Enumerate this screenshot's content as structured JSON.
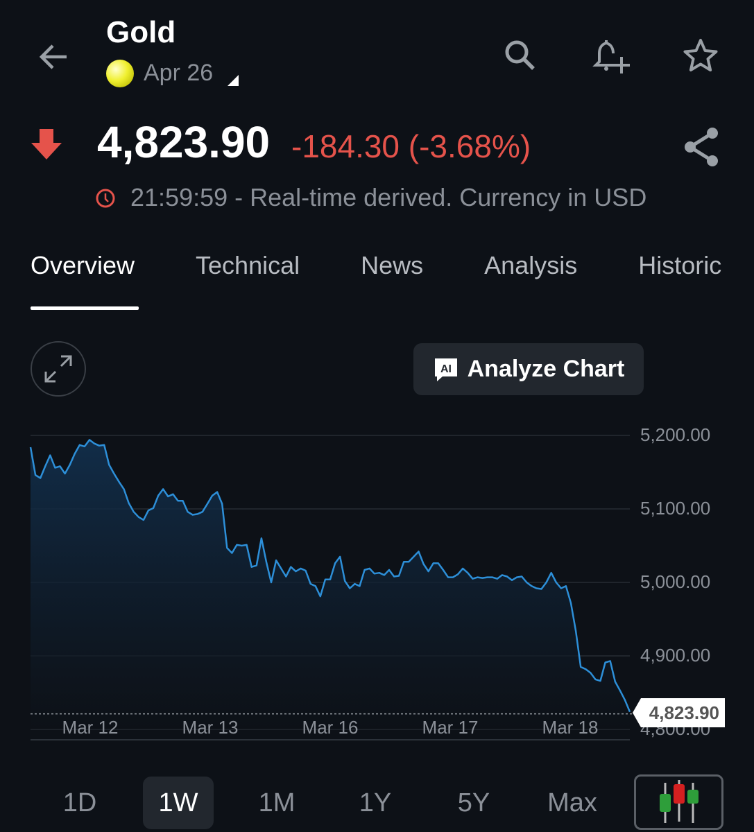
{
  "header": {
    "title": "Gold",
    "date": "Apr 26"
  },
  "quote": {
    "price": "4,823.90",
    "change": "-184.30 (-3.68%)",
    "direction": "down",
    "status": "21:59:59 - Real-time derived. Currency in USD"
  },
  "tabs": [
    {
      "label": "Overview",
      "active": true
    },
    {
      "label": "Technical"
    },
    {
      "label": "News"
    },
    {
      "label": "Analysis"
    },
    {
      "label": "Historic"
    }
  ],
  "analyze_label": "Analyze Chart",
  "ai_badge": "AI",
  "colors": {
    "line": "#2d8fd8",
    "down": "#e5534b",
    "background": "#0d1117"
  },
  "chart_data": {
    "type": "area",
    "x_tick_labels": [
      "Mar 12",
      "Mar 13",
      "Mar 16",
      "Mar 17",
      "Mar 18"
    ],
    "y_tick_labels": [
      "5,200.00",
      "5,100.00",
      "5,000.00",
      "4,900.00",
      "4,800.00"
    ],
    "ylim": [
      4780,
      5200
    ],
    "grid": true,
    "last_value_label": "4,823.90",
    "values": [
      5184,
      5146,
      5142,
      5158,
      5173,
      5156,
      5158,
      5148,
      5160,
      5175,
      5187,
      5185,
      5194,
      5189,
      5186,
      5187,
      5160,
      5148,
      5137,
      5127,
      5108,
      5096,
      5089,
      5085,
      5098,
      5101,
      5118,
      5127,
      5117,
      5120,
      5111,
      5111,
      5096,
      5092,
      5093,
      5096,
      5107,
      5118,
      5123,
      5107,
      5047,
      5040,
      5051,
      5050,
      5051,
      5021,
      5023,
      5060,
      5028,
      5000,
      5030,
      5019,
      5008,
      5021,
      5015,
      5019,
      5016,
      4998,
      4995,
      4981,
      5004,
      5004,
      5026,
      5035,
      5002,
      4992,
      4998,
      4995,
      5017,
      5019,
      5012,
      5013,
      5010,
      5017,
      5008,
      5009,
      5028,
      5028,
      5035,
      5042,
      5025,
      5015,
      5026,
      5026,
      5017,
      5007,
      5007,
      5011,
      5019,
      5013,
      5005,
      5007,
      5006,
      5007,
      5007,
      5005,
      5010,
      5008,
      5003,
      5007,
      5008,
      5000,
      4995,
      4992,
      4991,
      5000,
      5013,
      5000,
      4992,
      4995,
      4972,
      4934,
      4885,
      4882,
      4877,
      4868,
      4866,
      4891,
      4893,
      4865,
      4853,
      4840,
      4823.9
    ]
  },
  "ranges": [
    {
      "label": "1D"
    },
    {
      "label": "1W",
      "active": true
    },
    {
      "label": "1M"
    },
    {
      "label": "1Y"
    },
    {
      "label": "5Y"
    },
    {
      "label": "Max"
    }
  ]
}
